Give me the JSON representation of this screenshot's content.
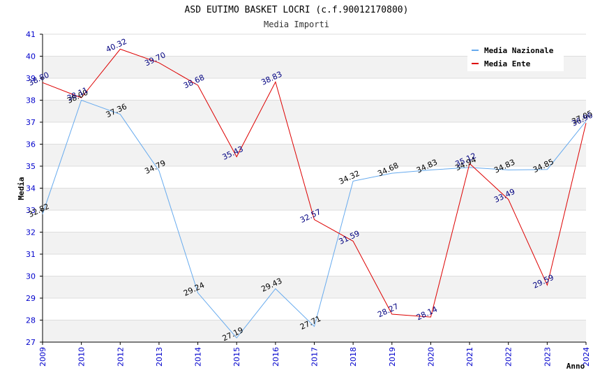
{
  "chart_data": {
    "type": "line",
    "title": "ASD EUTIMO BASKET LOCRI (c.f.90012170800)",
    "subtitle": "Media Importi",
    "xlabel": "Anno",
    "ylabel": "Media",
    "ylim": [
      27,
      41
    ],
    "yticks": [
      27,
      28,
      29,
      30,
      31,
      32,
      33,
      34,
      35,
      36,
      37,
      38,
      39,
      40,
      41
    ],
    "categories": [
      "2009",
      "2010",
      "2012",
      "2013",
      "2014",
      "2015",
      "2016",
      "2017",
      "2018",
      "2019",
      "2020",
      "2021",
      "2022",
      "2023",
      "2024"
    ],
    "grid": true,
    "legend_position": "top-right",
    "series": [
      {
        "name": "Media Nazionale",
        "color": "#66aaee",
        "label_color": "#000000",
        "values": [
          32.82,
          38.0,
          37.36,
          34.79,
          29.24,
          27.19,
          29.43,
          27.71,
          34.32,
          34.68,
          34.83,
          34.94,
          34.83,
          34.85,
          37.05
        ]
      },
      {
        "name": "Media Ente",
        "color": "#dd0000",
        "label_color": "#000080",
        "values": [
          38.8,
          38.11,
          40.32,
          39.7,
          38.68,
          35.43,
          38.83,
          32.57,
          31.59,
          28.27,
          28.14,
          35.12,
          33.49,
          29.59,
          36.96
        ]
      }
    ]
  }
}
